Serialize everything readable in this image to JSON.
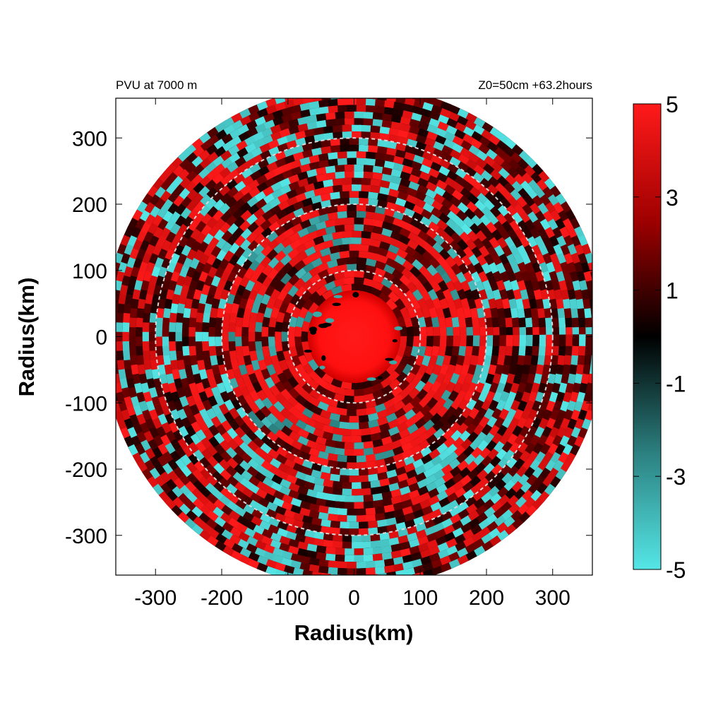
{
  "chart_data": {
    "type": "heatmap",
    "title_left": "PVU at  7000 m",
    "title_right": "Z0=50cm  +63.2hours",
    "xlabel": "Radius(km)",
    "ylabel": "Radius(km)",
    "xlim": [
      -360,
      360
    ],
    "ylim": [
      -360,
      360
    ],
    "x_ticks": [
      -300,
      -200,
      -100,
      0,
      100,
      200,
      300
    ],
    "y_ticks": [
      300,
      200,
      100,
      0,
      -100,
      -200,
      -300
    ],
    "x_tick_labels": [
      "-300",
      "-200",
      "-100",
      "0",
      "100",
      "200",
      "300"
    ],
    "y_tick_labels": [
      "300",
      "200",
      "100",
      "0",
      "-100",
      "-200",
      "-300"
    ],
    "domain_radius_km": 380,
    "range_rings_km": [
      100,
      200,
      300
    ],
    "colorbar": {
      "min": -5,
      "max": 5,
      "ticks": [
        5,
        3,
        1,
        -1,
        -3,
        -5
      ],
      "tick_labels": [
        "5",
        "3",
        "1",
        "-1",
        "-3",
        "-5"
      ],
      "colors": {
        "max": "#ff1a1a",
        "mid": "#000000",
        "min": "#55e6e6"
      }
    },
    "field_summary": {
      "core_radius_km": 70,
      "core_value": 5,
      "inner_band_km": [
        70,
        200
      ],
      "inner_band_value": 3.5,
      "outer_band_km": [
        200,
        380
      ],
      "outer_band_value": 1.5,
      "negative_value": -4
    }
  }
}
